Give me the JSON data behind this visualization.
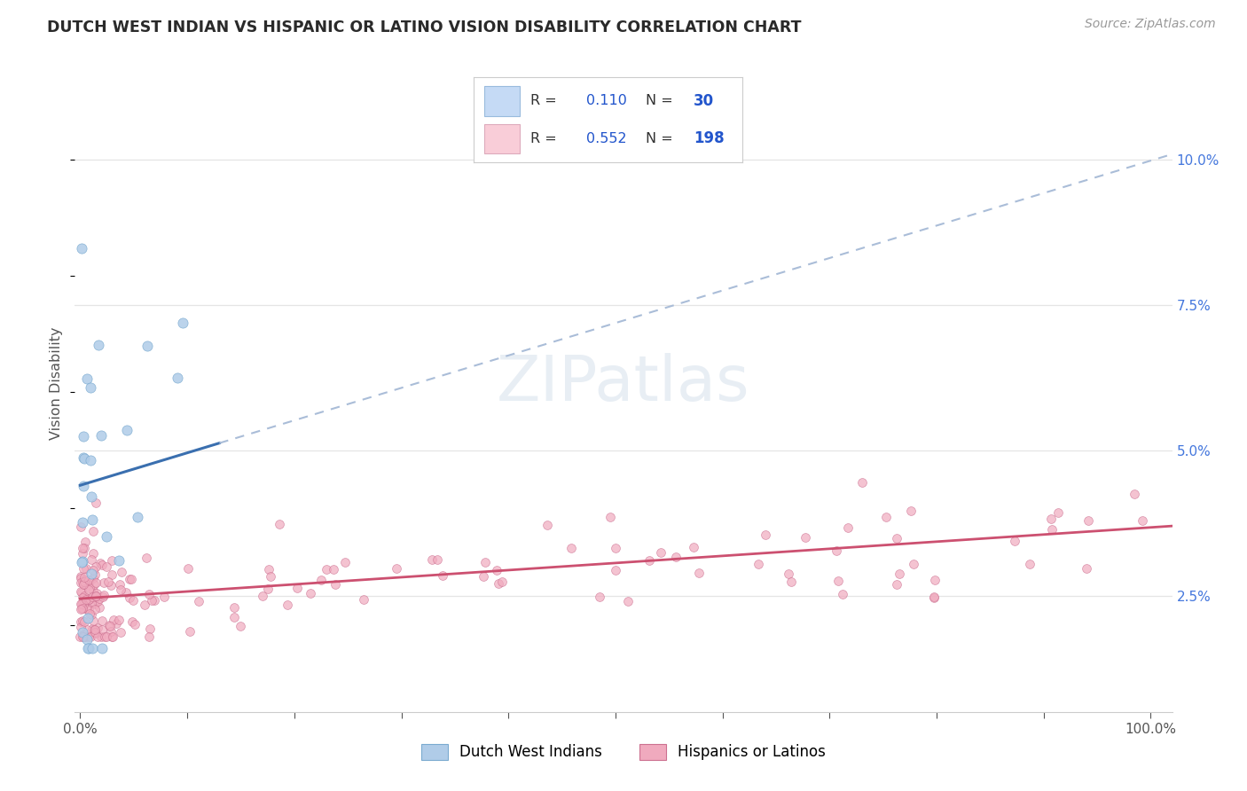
{
  "title": "DUTCH WEST INDIAN VS HISPANIC OR LATINO VISION DISABILITY CORRELATION CHART",
  "source": "Source: ZipAtlas.com",
  "ylabel": "Vision Disability",
  "blue_R": 0.11,
  "blue_N": 30,
  "pink_R": 0.552,
  "pink_N": 198,
  "blue_dot_color": "#b0cce8",
  "blue_dot_edge": "#7aaad0",
  "blue_line_color": "#3a6faf",
  "pink_dot_color": "#f0aabe",
  "pink_dot_edge": "#cc7090",
  "pink_line_color": "#cc5070",
  "dashed_color": "#aabdd8",
  "legend_box_blue_face": "#c5daf5",
  "legend_box_blue_edge": "#99bbdd",
  "legend_box_pink_face": "#f9cdd8",
  "legend_box_pink_edge": "#ddaabc",
  "legend_text_color": "#2255cc",
  "grid_color": "#e5e5e5",
  "axis_bottom_color": "#cccccc",
  "text_color": "#555555",
  "title_color": "#2a2a2a",
  "source_color": "#999999",
  "ytick_color": "#4477dd",
  "xlim": [
    -0.005,
    1.02
  ],
  "ylim": [
    0.005,
    0.118
  ],
  "yticks": [
    0.025,
    0.05,
    0.075,
    0.1
  ],
  "ytick_labels": [
    "2.5%",
    "5.0%",
    "7.5%",
    "10.0%"
  ],
  "blue_line_x0": 0.0,
  "blue_line_y0": 0.044,
  "blue_line_x1": 1.02,
  "blue_line_y1": 0.101,
  "pink_line_x0": 0.0,
  "pink_line_y0": 0.0245,
  "pink_line_x1": 1.02,
  "pink_line_y1": 0.037
}
